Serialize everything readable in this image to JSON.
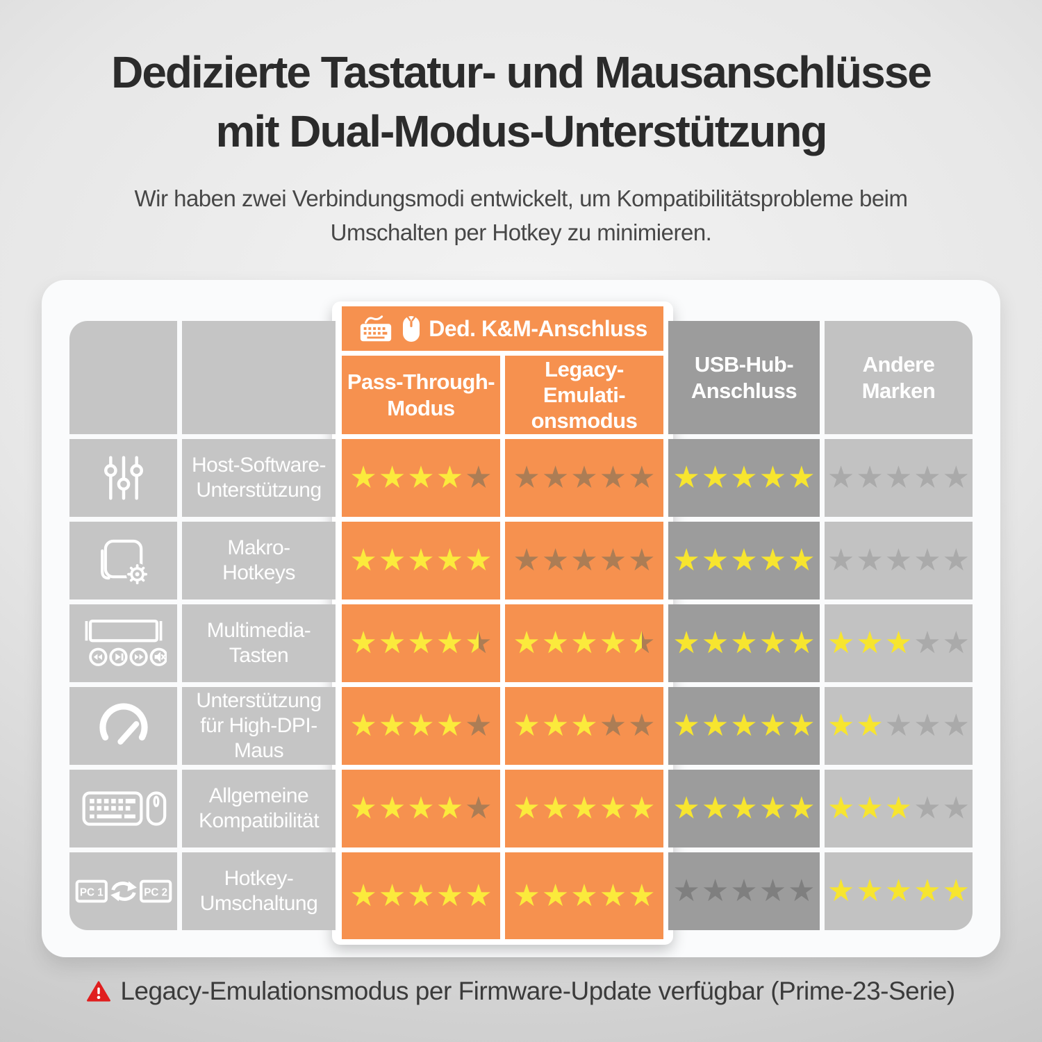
{
  "header": {
    "title_line1": "Dedizierte Tastatur- und Mausanschlüsse",
    "title_line2": "mit Dual-Modus-Unterstützung",
    "subtitle": "Wir haben zwei Verbindungsmodi entwickelt, um Kompatibilitätsprobleme beim\nUmschalten per Hotkey zu minimieren."
  },
  "table": {
    "group_header": "Ded. K&M-Anschluss",
    "group_header_icons": [
      "keyboard-icon",
      "mouse-icon"
    ],
    "columns": [
      {
        "label": "Pass-Through-\nModus",
        "theme": "orange"
      },
      {
        "label": "Legacy-\nEmulati-\nonsmodus",
        "theme": "orange"
      },
      {
        "label": "USB-Hub-\nAnschluss",
        "theme": "dark"
      },
      {
        "label": "Andere\nMarken",
        "theme": "light"
      }
    ],
    "rows": [
      {
        "icon": "sliders-icon",
        "label": "Host-Software-\nUnterstützung",
        "ratings": [
          4,
          0,
          5,
          0
        ]
      },
      {
        "icon": "macro-gear-icon",
        "label": "Makro-\nHotkeys",
        "ratings": [
          5,
          0,
          5,
          0
        ]
      },
      {
        "icon": "multimedia-keys-icon",
        "label": "Multimedia-\nTasten",
        "ratings": [
          4.5,
          4.5,
          5,
          3
        ]
      },
      {
        "icon": "gauge-icon",
        "label": "Unterstützung\nfür High-DPI-\nMaus",
        "ratings": [
          4,
          3,
          5,
          2
        ]
      },
      {
        "icon": "keyboard-mouse-icon",
        "label": "Allgemeine\nKompatibilität",
        "ratings": [
          4,
          5,
          5,
          3
        ]
      },
      {
        "icon": "pc-switch-icon",
        "label": "Hotkey-\nUmschaltung",
        "ratings": [
          5,
          5,
          0,
          5
        ]
      }
    ],
    "pc_switch_labels": [
      "PC 1",
      "PC 2"
    ],
    "rating_max": 5
  },
  "footer": {
    "note": "Legacy-Emulationsmodus per Firmware-Update verfügbar (Prime-23-Serie)"
  },
  "colors": {
    "page_bg_inner": "#F3F3F3",
    "page_bg_outer": "#C4C4C4",
    "title_text": "#2B2B2B",
    "subtitle_text": "#474747",
    "card_bg": "#FAFBFC",
    "cell_gray": "#C5C5C5",
    "col_dark": "#9C9C9C",
    "col_light": "#C2C2C2",
    "orange": "#F6914F",
    "panel_ring": "#FFFFFF",
    "star_on_orange": "#FBEA3C",
    "star_off_orange": "#AC7D55",
    "star_on": "#F7E52F",
    "star_off_dark": "#7F7F7F",
    "star_off_light": "#AAAAAA",
    "cell_text": "#FFFFFF",
    "footer_text": "#3B3B3B",
    "warning_red": "#E01E1E"
  },
  "chart_data": {
    "type": "table",
    "title": "Dedizierte Tastatur- und Mausanschlüsse mit Dual-Modus-Unterstützung",
    "subtitle": "Wir haben zwei Verbindungsmodi entwickelt, um Kompatibilitätsprobleme beim Umschalten per Hotkey zu minimieren.",
    "column_group": "Ded. K&M-Anschluss (Spalten 1-2)",
    "columns": [
      "Pass-Through-Modus",
      "Legacy-Emulationsmodus",
      "USB-Hub-Anschluss",
      "Andere Marken"
    ],
    "rows": [
      "Host-Software-Unterstützung",
      "Makro-Hotkeys",
      "Multimedia-Tasten",
      "Unterstützung für High-DPI-Maus",
      "Allgemeine Kompatibilität",
      "Hotkey-Umschaltung"
    ],
    "ratings_out_of_5": [
      [
        4,
        0,
        5,
        0
      ],
      [
        5,
        0,
        5,
        0
      ],
      [
        4.5,
        4.5,
        5,
        3
      ],
      [
        4,
        3,
        5,
        2
      ],
      [
        4,
        5,
        5,
        3
      ],
      [
        5,
        5,
        0,
        5
      ]
    ],
    "footnote": "Legacy-Emulationsmodus per Firmware-Update verfügbar (Prime-23-Serie)"
  }
}
